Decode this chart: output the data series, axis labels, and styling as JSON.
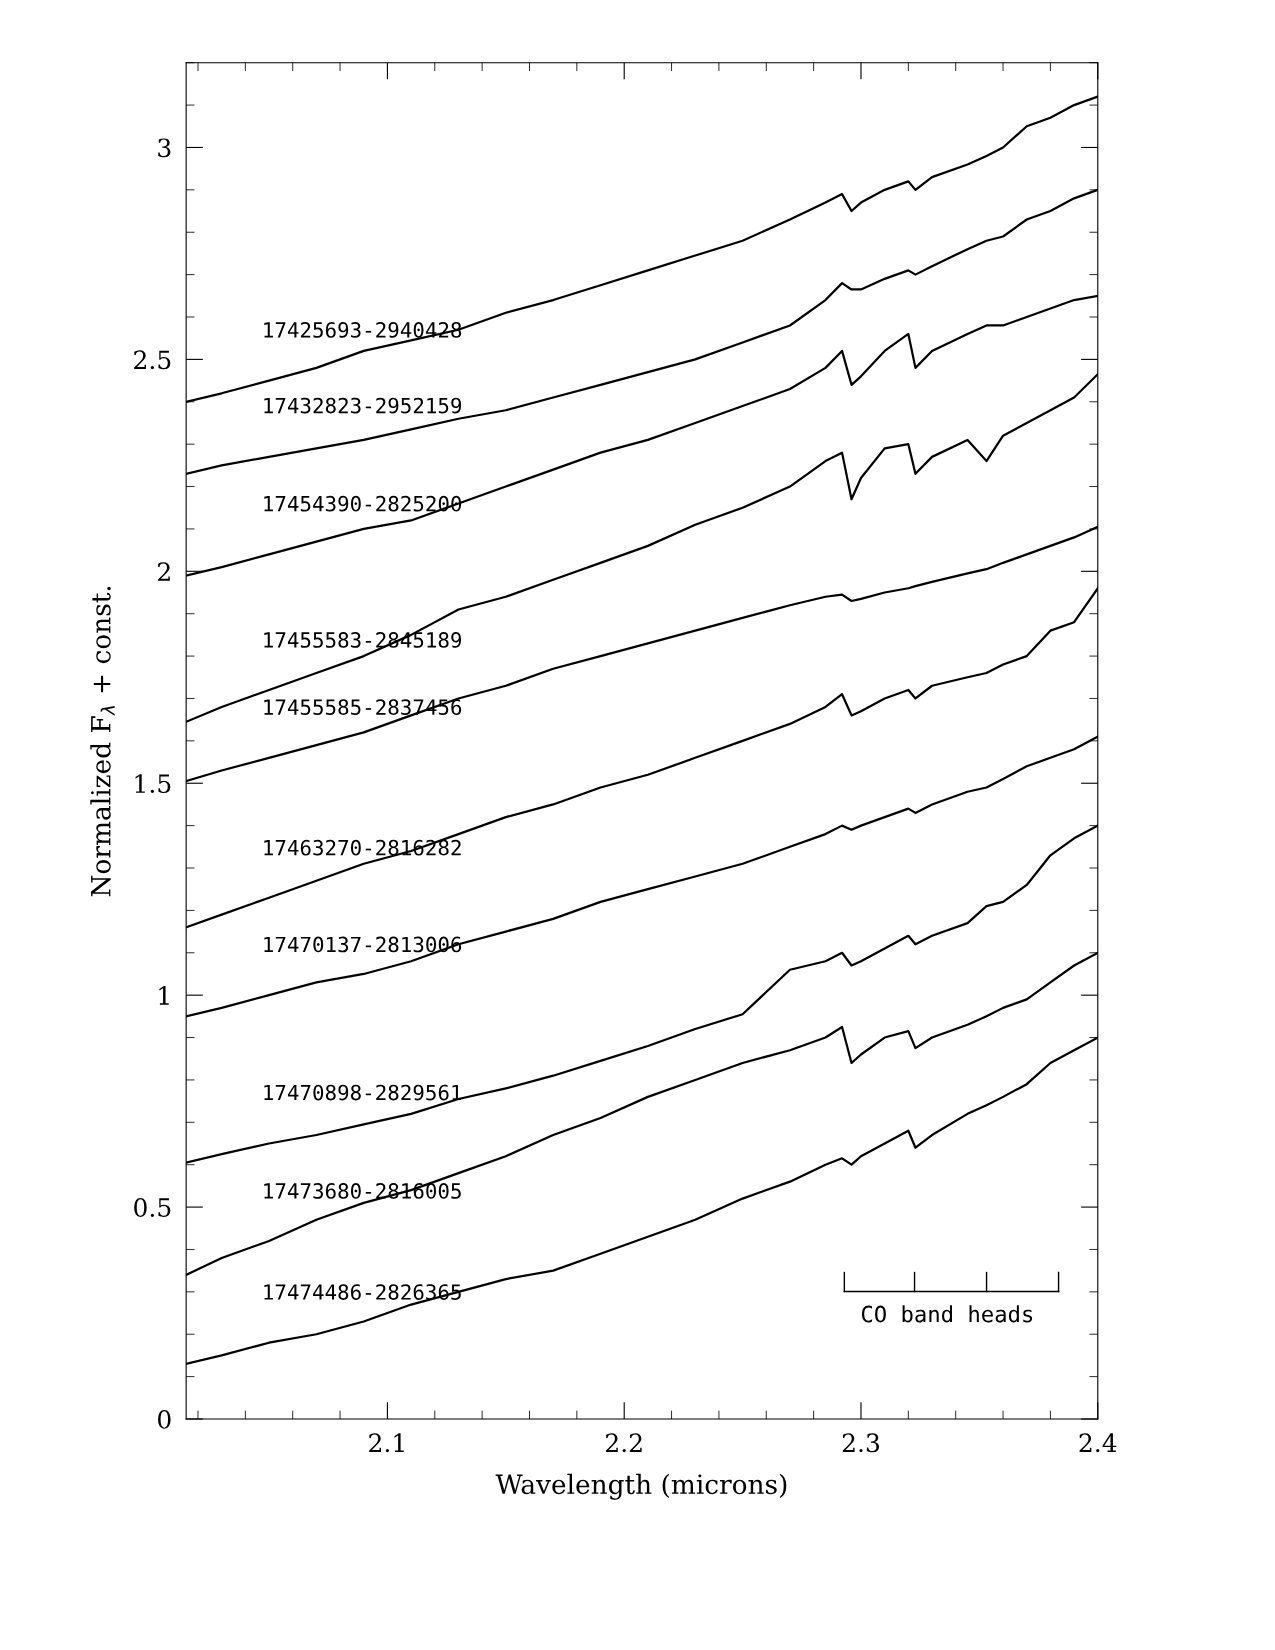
{
  "chart_data": {
    "type": "line",
    "xlabel": "Wavelength (microns)",
    "ylabel": "Normalized F$_{λ}$ + const.",
    "xlim": [
      2.015,
      2.4
    ],
    "xticks": [
      2.1,
      2.2,
      2.3,
      2.4
    ],
    "ylim": [
      0,
      3.2
    ],
    "yticks": [
      0,
      0.5,
      1,
      1.5,
      2,
      2.5,
      3
    ],
    "grid": false,
    "legend": false,
    "marker": "none",
    "line_style": "solid",
    "annotations": [
      "CO band heads"
    ],
    "x": [
      2.015,
      2.03,
      2.05,
      2.07,
      2.09,
      2.11,
      2.13,
      2.15,
      2.17,
      2.19,
      2.21,
      2.23,
      2.25,
      2.27,
      2.285,
      2.292,
      2.296,
      2.3,
      2.31,
      2.32,
      2.323,
      2.33,
      2.345,
      2.353,
      2.36,
      2.37,
      2.38,
      2.39,
      2.4
    ],
    "series": [
      {
        "name": "17425693-2940428",
        "color": "#000000",
        "values": [
          2.4,
          2.42,
          2.45,
          2.48,
          2.52,
          2.545,
          2.57,
          2.61,
          2.64,
          2.675,
          2.71,
          2.745,
          2.78,
          2.83,
          2.87,
          2.89,
          2.85,
          2.87,
          2.9,
          2.92,
          2.9,
          2.93,
          2.96,
          2.98,
          3.0,
          3.05,
          3.07,
          3.1,
          3.12
        ]
      },
      {
        "name": "17432823-2952159",
        "color": "#000000",
        "values": [
          2.23,
          2.25,
          2.27,
          2.29,
          2.31,
          2.335,
          2.36,
          2.38,
          2.41,
          2.44,
          2.47,
          2.5,
          2.54,
          2.58,
          2.64,
          2.68,
          2.665,
          2.665,
          2.69,
          2.71,
          2.7,
          2.72,
          2.76,
          2.78,
          2.79,
          2.83,
          2.85,
          2.88,
          2.9
        ]
      },
      {
        "name": "17454390-2825200",
        "color": "#000000",
        "values": [
          1.99,
          2.01,
          2.04,
          2.07,
          2.1,
          2.12,
          2.16,
          2.2,
          2.24,
          2.28,
          2.31,
          2.35,
          2.39,
          2.43,
          2.48,
          2.52,
          2.44,
          2.46,
          2.52,
          2.56,
          2.48,
          2.52,
          2.56,
          2.58,
          2.58,
          2.6,
          2.62,
          2.64,
          2.65
        ]
      },
      {
        "name": "17455583-2845189",
        "color": "#000000",
        "values": [
          1.645,
          1.68,
          1.72,
          1.76,
          1.8,
          1.85,
          1.91,
          1.94,
          1.98,
          2.02,
          2.06,
          2.11,
          2.15,
          2.2,
          2.26,
          2.28,
          2.17,
          2.22,
          2.29,
          2.3,
          2.23,
          2.27,
          2.31,
          2.26,
          2.32,
          2.35,
          2.38,
          2.41,
          2.465
        ]
      },
      {
        "name": "17455585-2837456",
        "color": "#000000",
        "values": [
          1.505,
          1.53,
          1.56,
          1.59,
          1.62,
          1.66,
          1.7,
          1.73,
          1.77,
          1.8,
          1.83,
          1.86,
          1.89,
          1.92,
          1.94,
          1.945,
          1.93,
          1.935,
          1.95,
          1.96,
          1.965,
          1.975,
          1.995,
          2.005,
          2.02,
          2.04,
          2.06,
          2.08,
          2.105
        ]
      },
      {
        "name": "17463270-2816282",
        "color": "#000000",
        "values": [
          1.16,
          1.19,
          1.23,
          1.27,
          1.31,
          1.34,
          1.38,
          1.42,
          1.45,
          1.49,
          1.52,
          1.56,
          1.6,
          1.64,
          1.68,
          1.71,
          1.66,
          1.67,
          1.7,
          1.72,
          1.7,
          1.73,
          1.75,
          1.76,
          1.78,
          1.8,
          1.86,
          1.88,
          1.96
        ]
      },
      {
        "name": "17470137-2813006",
        "color": "#000000",
        "values": [
          0.95,
          0.97,
          1.0,
          1.03,
          1.05,
          1.08,
          1.12,
          1.15,
          1.18,
          1.22,
          1.25,
          1.28,
          1.31,
          1.35,
          1.38,
          1.4,
          1.39,
          1.4,
          1.42,
          1.44,
          1.43,
          1.45,
          1.48,
          1.49,
          1.51,
          1.54,
          1.56,
          1.58,
          1.61
        ]
      },
      {
        "name": "17470898-2829561",
        "color": "#000000",
        "values": [
          0.605,
          0.625,
          0.65,
          0.67,
          0.695,
          0.72,
          0.755,
          0.78,
          0.81,
          0.845,
          0.88,
          0.92,
          0.955,
          1.06,
          1.08,
          1.1,
          1.07,
          1.08,
          1.11,
          1.14,
          1.12,
          1.14,
          1.17,
          1.21,
          1.22,
          1.26,
          1.33,
          1.37,
          1.4
        ]
      },
      {
        "name": "17473680-2816005",
        "color": "#000000",
        "values": [
          0.34,
          0.38,
          0.42,
          0.47,
          0.51,
          0.54,
          0.58,
          0.62,
          0.67,
          0.71,
          0.76,
          0.8,
          0.84,
          0.87,
          0.9,
          0.925,
          0.84,
          0.86,
          0.9,
          0.915,
          0.875,
          0.9,
          0.93,
          0.95,
          0.97,
          0.99,
          1.03,
          1.07,
          1.1
        ]
      },
      {
        "name": "17474486-2826365",
        "color": "#000000",
        "values": [
          0.13,
          0.15,
          0.18,
          0.2,
          0.23,
          0.27,
          0.3,
          0.33,
          0.35,
          0.39,
          0.43,
          0.47,
          0.52,
          0.56,
          0.6,
          0.615,
          0.6,
          0.62,
          0.65,
          0.68,
          0.64,
          0.67,
          0.72,
          0.74,
          0.76,
          0.79,
          0.84,
          0.87,
          0.9
        ]
      }
    ]
  }
}
